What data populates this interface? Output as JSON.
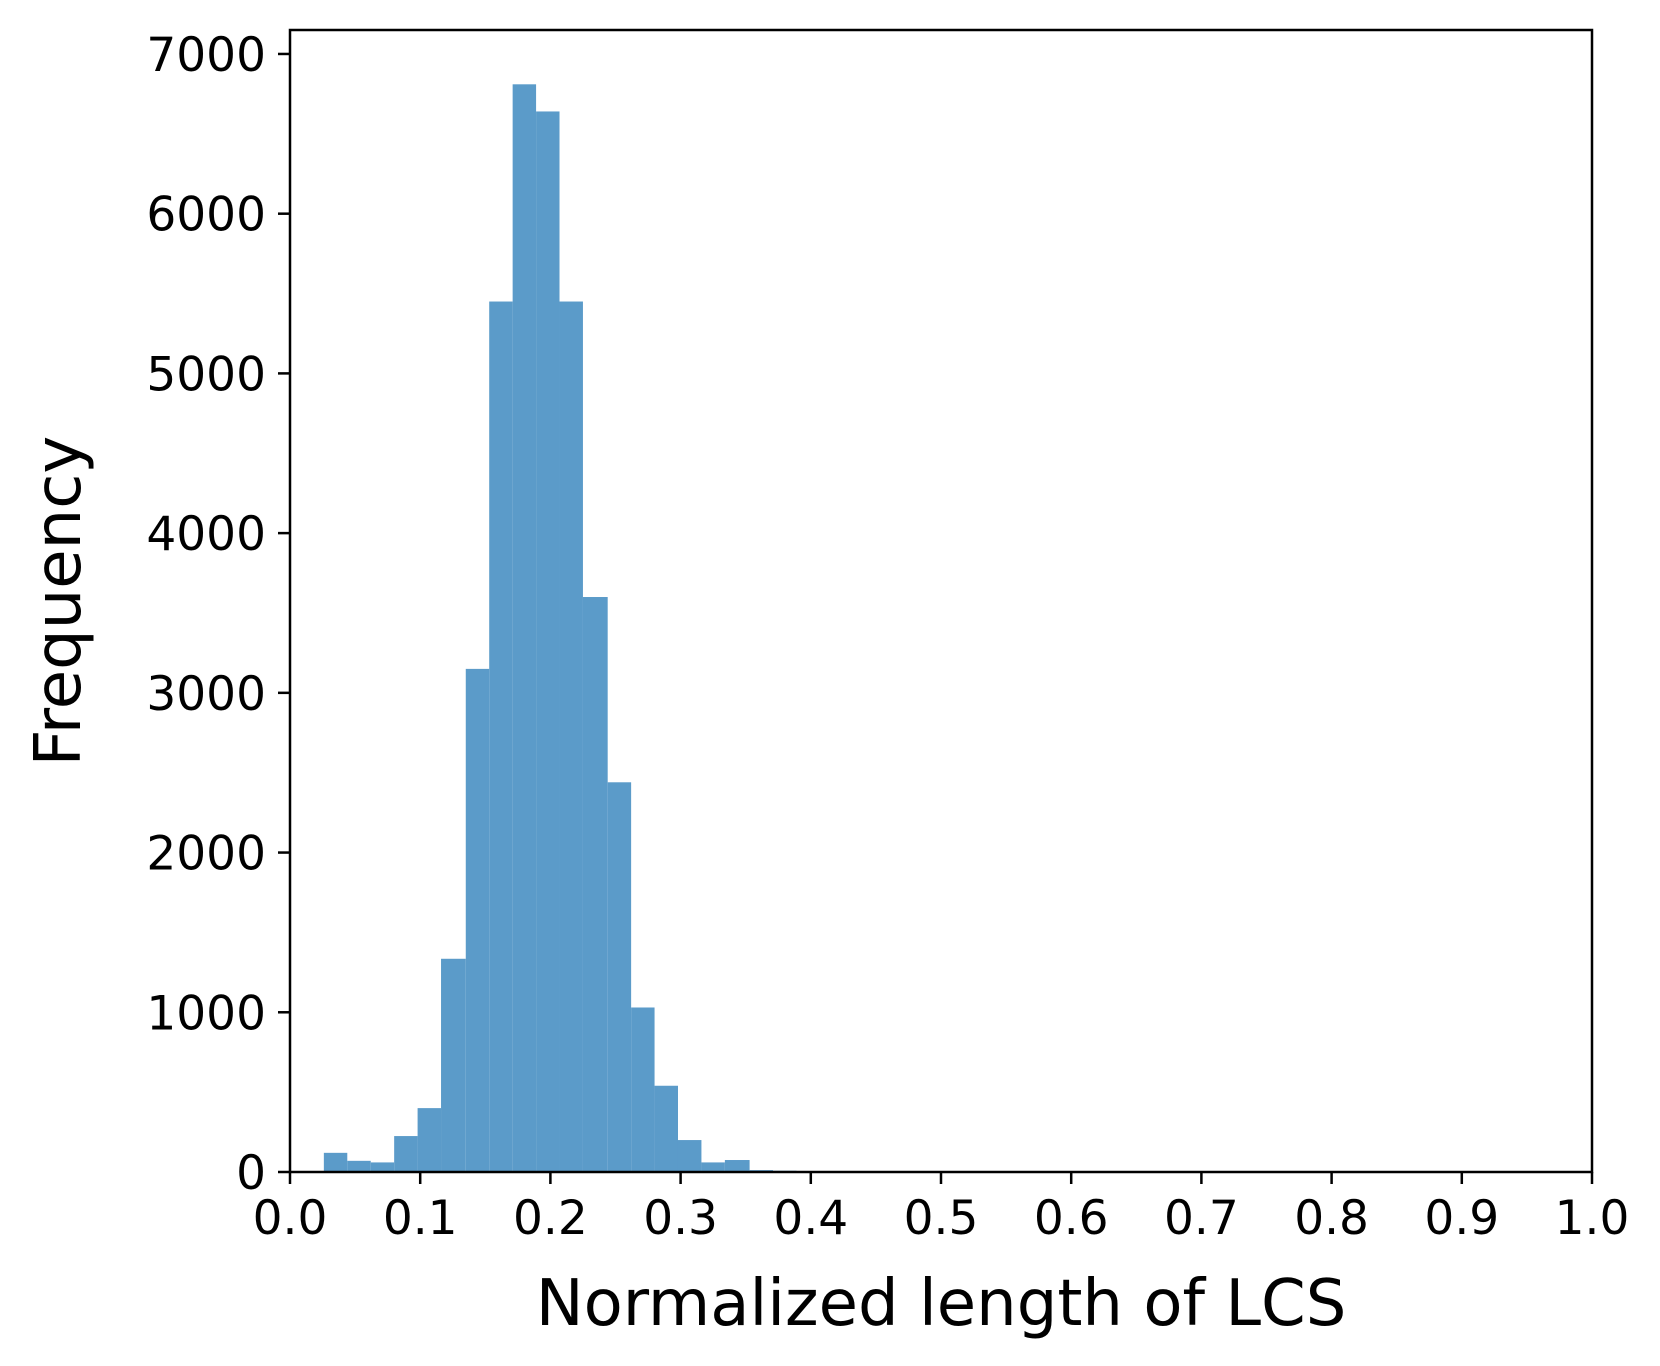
{
  "chart_data": {
    "type": "bar",
    "title": "",
    "xlabel": "Normalized length of LCS",
    "ylabel": "Frequency",
    "xlim": [
      0.0,
      1.0
    ],
    "ylim": [
      0,
      7150
    ],
    "x_ticks": [
      "0.0",
      "0.1",
      "0.2",
      "0.3",
      "0.4",
      "0.5",
      "0.6",
      "0.7",
      "0.8",
      "0.9",
      "1.0"
    ],
    "y_ticks": [
      "0",
      "1000",
      "2000",
      "3000",
      "4000",
      "5000",
      "6000",
      "7000"
    ],
    "grid": false,
    "legend": "none",
    "bar_color": "#5b9bc9",
    "bins": [
      {
        "x0": 0.026,
        "x1": 0.044,
        "value": 120
      },
      {
        "x0": 0.044,
        "x1": 0.062,
        "value": 70
      },
      {
        "x0": 0.062,
        "x1": 0.08,
        "value": 60
      },
      {
        "x0": 0.08,
        "x1": 0.098,
        "value": 225
      },
      {
        "x0": 0.098,
        "x1": 0.116,
        "value": 400
      },
      {
        "x0": 0.116,
        "x1": 0.135,
        "value": 1335
      },
      {
        "x0": 0.135,
        "x1": 0.153,
        "value": 3150
      },
      {
        "x0": 0.153,
        "x1": 0.171,
        "value": 5450
      },
      {
        "x0": 0.171,
        "x1": 0.189,
        "value": 6810
      },
      {
        "x0": 0.189,
        "x1": 0.207,
        "value": 6640
      },
      {
        "x0": 0.207,
        "x1": 0.225,
        "value": 5450
      },
      {
        "x0": 0.225,
        "x1": 0.244,
        "value": 3600
      },
      {
        "x0": 0.244,
        "x1": 0.262,
        "value": 2440
      },
      {
        "x0": 0.262,
        "x1": 0.28,
        "value": 1030
      },
      {
        "x0": 0.28,
        "x1": 0.298,
        "value": 540
      },
      {
        "x0": 0.298,
        "x1": 0.316,
        "value": 200
      },
      {
        "x0": 0.316,
        "x1": 0.334,
        "value": 60
      },
      {
        "x0": 0.334,
        "x1": 0.353,
        "value": 75
      },
      {
        "x0": 0.353,
        "x1": 0.371,
        "value": 12
      },
      {
        "x0": 0.371,
        "x1": 0.389,
        "value": 8
      },
      {
        "x0": 0.389,
        "x1": 0.407,
        "value": 5
      },
      {
        "x0": 0.407,
        "x1": 0.425,
        "value": 4
      },
      {
        "x0": 0.425,
        "x1": 0.443,
        "value": 3
      },
      {
        "x0": 0.443,
        "x1": 0.462,
        "value": 2
      },
      {
        "x0": 0.462,
        "x1": 0.48,
        "value": 2
      },
      {
        "x0": 0.48,
        "x1": 0.498,
        "value": 1
      }
    ]
  }
}
